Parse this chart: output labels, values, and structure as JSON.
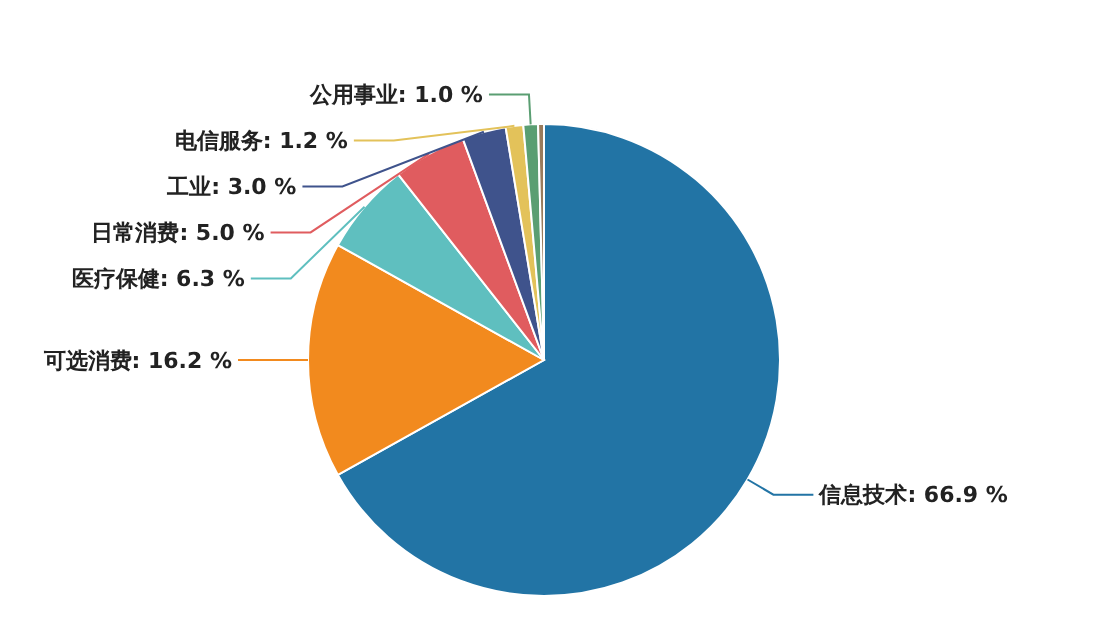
{
  "chart_data": {
    "type": "pie",
    "categories": [
      "信息技术",
      "可选消费",
      "医疗保健",
      "日常消费",
      "工业",
      "电信服务",
      "公用事业",
      null
    ],
    "values": [
      66.9,
      16.2,
      6.3,
      5.0,
      3.0,
      1.2,
      1.0,
      0.4
    ],
    "colors": [
      "#2274a5",
      "#f28a1e",
      "#5fbfbf",
      "#e05c5f",
      "#3f538c",
      "#e3c25a",
      "#5a9e72",
      "#9a7b5c"
    ],
    "value_labels": [
      "66.9 %",
      "16.2 %",
      "6.3 %",
      "5.0 %",
      "3.0 %",
      "1.2 %",
      "1.0 %",
      null
    ],
    "legend": false
  }
}
